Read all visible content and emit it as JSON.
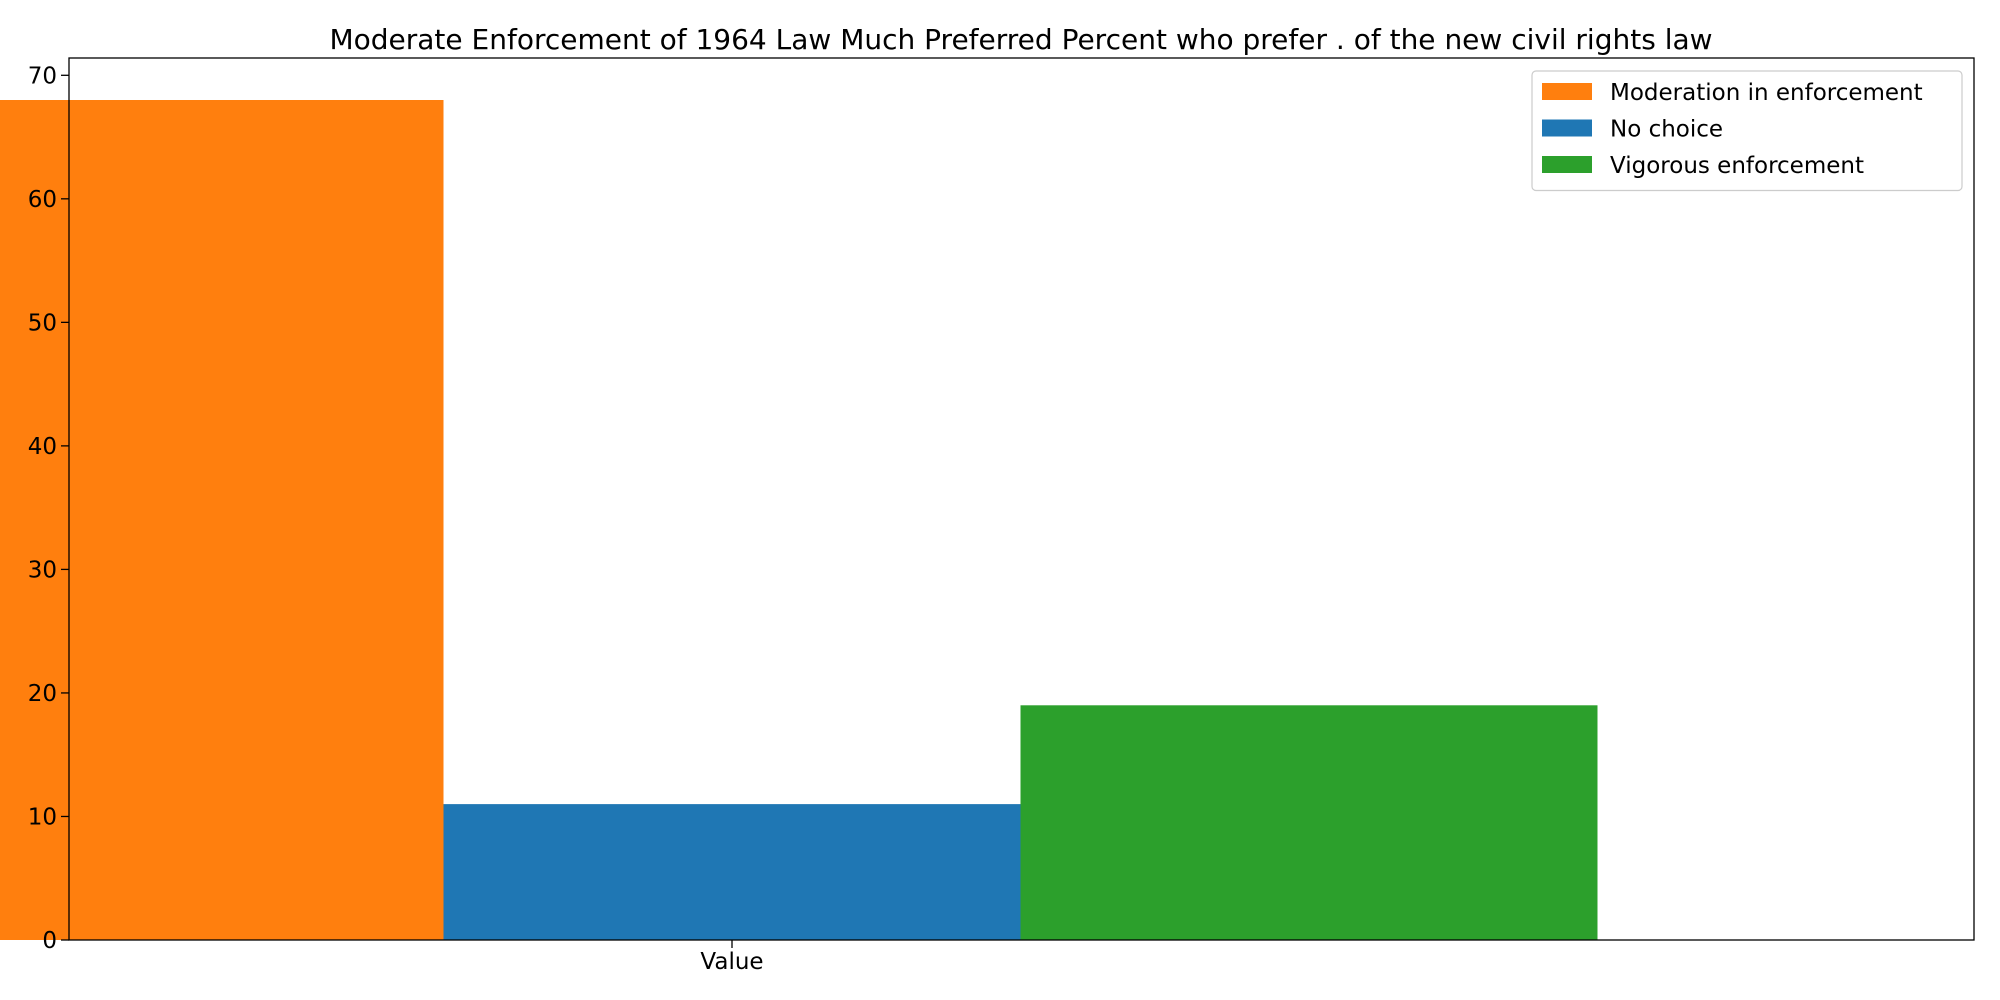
{
  "chart_data": {
    "type": "bar",
    "title": "Moderate Enforcement of 1964 Law Much Preferred Percent who prefer . of the new civil rights law",
    "categories": [
      "Value"
    ],
    "series": [
      {
        "name": "Moderation in enforcement",
        "values": [
          68
        ],
        "color": "#ff7f0e"
      },
      {
        "name": "No choice",
        "values": [
          11
        ],
        "color": "#1f77b4"
      },
      {
        "name": "Vigorous enforcement",
        "values": [
          19
        ],
        "color": "#2ca02c"
      }
    ],
    "ylim": [
      0,
      71.4
    ],
    "yticks": [
      0,
      10,
      20,
      30,
      40,
      50,
      60,
      70
    ],
    "xlabel": "",
    "ylabel": "",
    "grid": false,
    "legend_position": "top-right"
  }
}
